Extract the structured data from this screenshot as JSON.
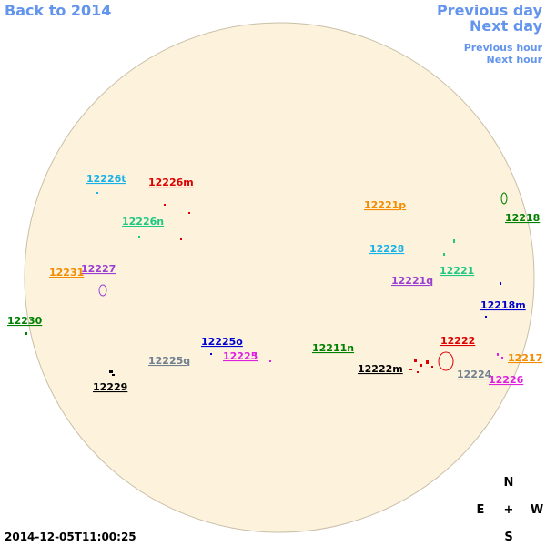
{
  "nav": {
    "back": "Back to 2014",
    "previous_day": "Previous day",
    "next_day": "Next day",
    "previous_hour": "Previous hour",
    "next_hour": "Next hour"
  },
  "regions": [
    {
      "label": "12226t",
      "color": "#19b2e8"
    },
    {
      "label": "12226m",
      "color": "#dd0000"
    },
    {
      "label": "12226n",
      "color": "#1fc782"
    },
    {
      "label": "12227",
      "color": "#9b3fd2"
    },
    {
      "label": "12231",
      "color": "#f28c00"
    },
    {
      "label": "12230",
      "color": "#008000"
    },
    {
      "label": "12221p",
      "color": "#f28c00"
    },
    {
      "label": "12218",
      "color": "#008000"
    },
    {
      "label": "12228",
      "color": "#19b2e8"
    },
    {
      "label": "12221",
      "color": "#1fc782"
    },
    {
      "label": "12221q",
      "color": "#9b3fd2"
    },
    {
      "label": "12218m",
      "color": "#0000d0"
    },
    {
      "label": "12211n",
      "color": "#008000"
    },
    {
      "label": "12225o",
      "color": "#0000d0"
    },
    {
      "label": "12225q",
      "color": "#708090"
    },
    {
      "label": "12225",
      "color": "#e020e0"
    },
    {
      "label": "12222",
      "color": "#dd0000"
    },
    {
      "label": "12222m",
      "color": "#000000"
    },
    {
      "label": "12224",
      "color": "#708090"
    },
    {
      "label": "12217",
      "color": "#f28c00"
    },
    {
      "label": "12226",
      "color": "#e020e0"
    },
    {
      "label": "12229",
      "color": "#000000"
    }
  ],
  "compass": {
    "north": "N",
    "east": "E",
    "center": "+",
    "west": "W",
    "south": "S"
  },
  "timestamp": "2014-12-05T11:00:25"
}
